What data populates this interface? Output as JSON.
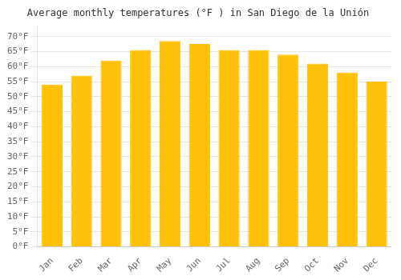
{
  "chart_data": {
    "type": "bar",
    "title": "Average monthly temperatures (°F ) in San Diego de la Unión",
    "categories": [
      "Jan",
      "Feb",
      "Mar",
      "Apr",
      "May",
      "Jun",
      "Jul",
      "Aug",
      "Sep",
      "Oct",
      "Nov",
      "Dec"
    ],
    "values": [
      54,
      57,
      62,
      65.5,
      68.5,
      67.5,
      65.5,
      65.5,
      64,
      61,
      58,
      55
    ],
    "color": "#FFC107",
    "ylim": [
      0,
      73
    ],
    "yticks": [
      {
        "value": 0,
        "label": "0°F"
      },
      {
        "value": 5,
        "label": "5°F"
      },
      {
        "value": 10,
        "label": "10°F"
      },
      {
        "value": 15,
        "label": "15°F"
      },
      {
        "value": 20,
        "label": "20°F"
      },
      {
        "value": 25,
        "label": "25°F"
      },
      {
        "value": 30,
        "label": "30°F"
      },
      {
        "value": 35,
        "label": "35°F"
      },
      {
        "value": 40,
        "label": "40°F"
      },
      {
        "value": 45,
        "label": "45°F"
      },
      {
        "value": 50,
        "label": "50°F"
      },
      {
        "value": 55,
        "label": "55°F"
      },
      {
        "value": 60,
        "label": "60°F"
      },
      {
        "value": 65,
        "label": "65°F"
      },
      {
        "value": 70,
        "label": "70°F"
      }
    ],
    "grid": true
  }
}
